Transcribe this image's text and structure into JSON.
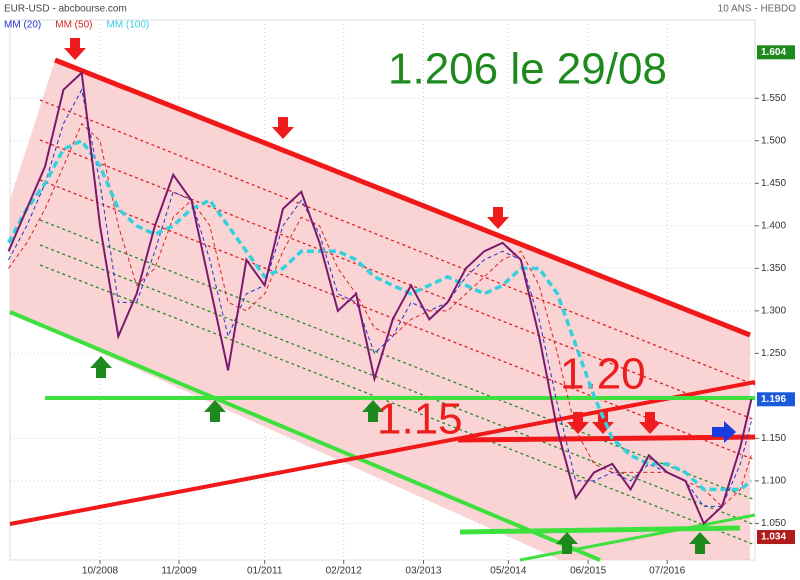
{
  "chart_data": {
    "type": "line",
    "title": "EUR-USD - abcbourse.com",
    "subtitle": "10 ANS - HEBDO",
    "annotations": [
      "1.206 le 29/08",
      "1.20",
      "1.15"
    ],
    "price_labels": [
      1.604,
      1.196,
      1.034
    ],
    "x": [
      2007.5,
      2007.75,
      2008.0,
      2008.25,
      2008.5,
      2008.75,
      2009.0,
      2009.25,
      2009.5,
      2009.75,
      2010.0,
      2010.25,
      2010.5,
      2010.75,
      2011.0,
      2011.25,
      2011.5,
      2011.75,
      2012.0,
      2012.25,
      2012.5,
      2012.75,
      2013.0,
      2013.25,
      2013.5,
      2013.75,
      2014.0,
      2014.25,
      2014.5,
      2014.75,
      2015.0,
      2015.25,
      2015.5,
      2015.75,
      2016.0,
      2016.25,
      2016.5,
      2016.75,
      2017.0,
      2017.25,
      2017.5,
      2017.65
    ],
    "values": [
      1.37,
      1.42,
      1.47,
      1.56,
      1.58,
      1.4,
      1.27,
      1.32,
      1.4,
      1.46,
      1.43,
      1.33,
      1.23,
      1.36,
      1.33,
      1.42,
      1.44,
      1.38,
      1.3,
      1.32,
      1.22,
      1.29,
      1.33,
      1.29,
      1.31,
      1.35,
      1.37,
      1.38,
      1.36,
      1.27,
      1.16,
      1.08,
      1.11,
      1.12,
      1.09,
      1.13,
      1.11,
      1.1,
      1.05,
      1.07,
      1.14,
      1.196
    ],
    "price_color": "#7a1a6e",
    "series": [
      {
        "name": "MM (20)",
        "color": "#2233cc",
        "values": [
          1.36,
          1.4,
          1.45,
          1.52,
          1.56,
          1.45,
          1.31,
          1.31,
          1.37,
          1.44,
          1.43,
          1.36,
          1.27,
          1.32,
          1.33,
          1.4,
          1.43,
          1.39,
          1.32,
          1.31,
          1.25,
          1.27,
          1.31,
          1.3,
          1.31,
          1.34,
          1.36,
          1.37,
          1.36,
          1.29,
          1.19,
          1.1,
          1.1,
          1.11,
          1.1,
          1.12,
          1.11,
          1.1,
          1.07,
          1.07,
          1.12,
          1.17
        ]
      },
      {
        "name": "MM (50)",
        "color": "#dd2222",
        "values": [
          1.35,
          1.38,
          1.42,
          1.47,
          1.52,
          1.5,
          1.4,
          1.33,
          1.35,
          1.41,
          1.43,
          1.4,
          1.31,
          1.3,
          1.32,
          1.37,
          1.41,
          1.4,
          1.35,
          1.32,
          1.28,
          1.27,
          1.29,
          1.3,
          1.3,
          1.32,
          1.34,
          1.36,
          1.37,
          1.33,
          1.25,
          1.16,
          1.12,
          1.11,
          1.11,
          1.11,
          1.11,
          1.1,
          1.09,
          1.07,
          1.09,
          1.13
        ]
      },
      {
        "name": "MM (100)",
        "color": "#33d1dd",
        "values": [
          1.38,
          1.42,
          1.45,
          1.49,
          1.5,
          1.47,
          1.42,
          1.4,
          1.39,
          1.4,
          1.42,
          1.43,
          1.4,
          1.37,
          1.34,
          1.35,
          1.37,
          1.37,
          1.37,
          1.36,
          1.34,
          1.33,
          1.32,
          1.33,
          1.34,
          1.33,
          1.32,
          1.33,
          1.35,
          1.35,
          1.32,
          1.26,
          1.2,
          1.15,
          1.13,
          1.12,
          1.12,
          1.11,
          1.09,
          1.09,
          1.09,
          1.1
        ]
      }
    ],
    "xlim": [
      2007.52,
      2017.7
    ],
    "xticks": [
      {
        "value": 2008.75,
        "label": "10/2008"
      },
      {
        "value": 2009.83,
        "label": "11/2009"
      },
      {
        "value": 2011.0,
        "label": "01/2011"
      },
      {
        "value": 2012.08,
        "label": "02/2012"
      },
      {
        "value": 2013.17,
        "label": "03/2013"
      },
      {
        "value": 2014.33,
        "label": "05/2014"
      },
      {
        "value": 2015.42,
        "label": "06/2015"
      },
      {
        "value": 2016.5,
        "label": "07/2016"
      }
    ],
    "ylim": [
      1.007,
      1.642
    ],
    "yticks": [
      {
        "value": 1.05,
        "label": "1.050"
      },
      {
        "value": 1.1,
        "label": "1.100"
      },
      {
        "value": 1.15,
        "label": "1.150"
      },
      {
        "value": 1.25,
        "label": "1.250"
      },
      {
        "value": 1.3,
        "label": "1.300"
      },
      {
        "value": 1.35,
        "label": "1.350"
      },
      {
        "value": 1.4,
        "label": "1.400"
      },
      {
        "value": 1.45,
        "label": "1.450"
      },
      {
        "value": 1.5,
        "label": "1.500"
      },
      {
        "value": 1.55,
        "label": "1.550"
      }
    ],
    "grid": true
  }
}
